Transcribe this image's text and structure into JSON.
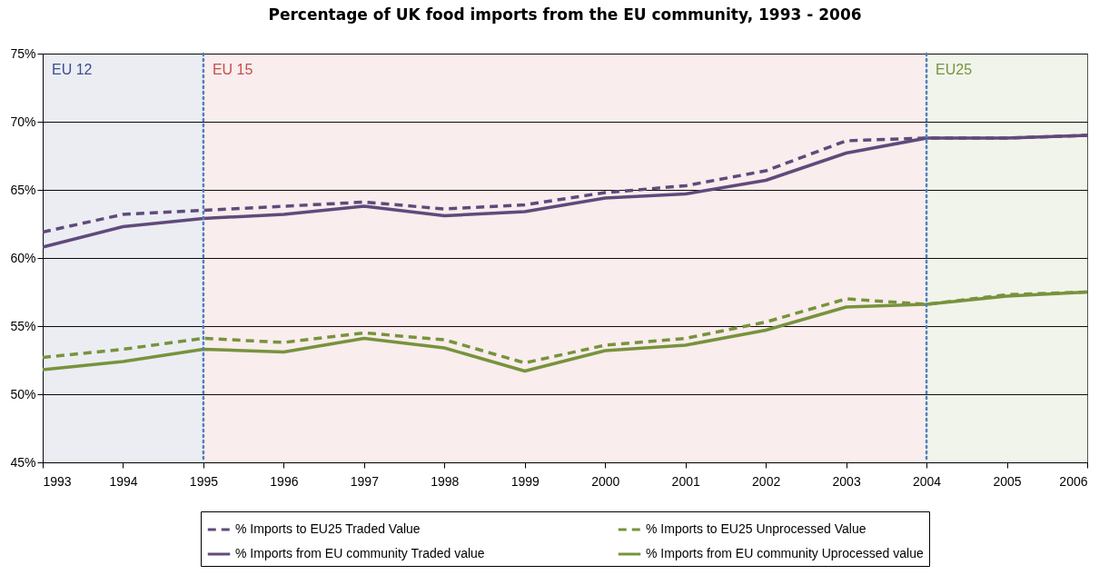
{
  "chart_data": {
    "type": "line",
    "title": "Percentage of UK food imports from the EU community, 1993 - 2006",
    "x": [
      1993,
      1994,
      1995,
      1996,
      1997,
      1998,
      1999,
      2000,
      2001,
      2002,
      2003,
      2004,
      2005,
      2006
    ],
    "series": [
      {
        "name": "% Imports to EU25 Traded Value",
        "color": "#604a7b",
        "line_style": "dashed",
        "values": [
          61.9,
          63.2,
          63.5,
          63.8,
          64.1,
          63.6,
          63.9,
          64.8,
          65.3,
          66.4,
          68.6,
          68.8,
          68.8,
          69.0
        ]
      },
      {
        "name": "% Imports to EU25 Unprocessed Value",
        "color": "#77933c",
        "line_style": "dashed",
        "values": [
          52.7,
          53.3,
          54.1,
          53.8,
          54.5,
          54.0,
          52.3,
          53.6,
          54.1,
          55.3,
          57.0,
          56.6,
          57.3,
          57.5
        ]
      },
      {
        "name": "% Imports from EU community Traded value",
        "color": "#604a7b",
        "line_style": "solid",
        "values": [
          60.8,
          62.3,
          62.9,
          63.2,
          63.8,
          63.1,
          63.4,
          64.4,
          64.7,
          65.7,
          67.7,
          68.8,
          68.8,
          69.0
        ]
      },
      {
        "name": "% Imports from EU community Uprocessed value",
        "color": "#77933c",
        "line_style": "solid",
        "values": [
          51.8,
          52.4,
          53.3,
          53.1,
          54.1,
          53.4,
          51.7,
          53.2,
          53.6,
          54.7,
          56.4,
          56.6,
          57.2,
          57.5
        ]
      }
    ],
    "xlim": [
      1993,
      2006
    ],
    "xticks": [
      1993,
      1994,
      1995,
      1996,
      1997,
      1998,
      1999,
      2000,
      2001,
      2002,
      2003,
      2004,
      2005,
      2006
    ],
    "ylim": [
      45,
      75
    ],
    "yticks": [
      {
        "value": 45,
        "label": "45%"
      },
      {
        "value": 50,
        "label": "50%"
      },
      {
        "value": 55,
        "label": "55%"
      },
      {
        "value": 60,
        "label": "60%"
      },
      {
        "value": 65,
        "label": "65%"
      },
      {
        "value": 70,
        "label": "70%"
      },
      {
        "value": 75,
        "label": "75%"
      }
    ],
    "bands": [
      {
        "axis": "x",
        "from": 1993,
        "to": 1995,
        "label": "EU 12",
        "color": "#3b4f8c"
      },
      {
        "axis": "x",
        "from": 1995,
        "to": 2004,
        "label": "EU 15",
        "color": "#c0504d"
      },
      {
        "axis": "x",
        "from": 2004,
        "to": 2006,
        "label": "EU25",
        "color": "#77933c"
      }
    ],
    "ref_lines": [
      {
        "axis": "x",
        "value": 1995,
        "color": "#4f81bd",
        "line_style": "dotted"
      },
      {
        "axis": "x",
        "value": 2004,
        "color": "#4f81bd",
        "line_style": "dotted"
      }
    ],
    "grid": "y",
    "legend": "bottom",
    "marker": "none"
  }
}
